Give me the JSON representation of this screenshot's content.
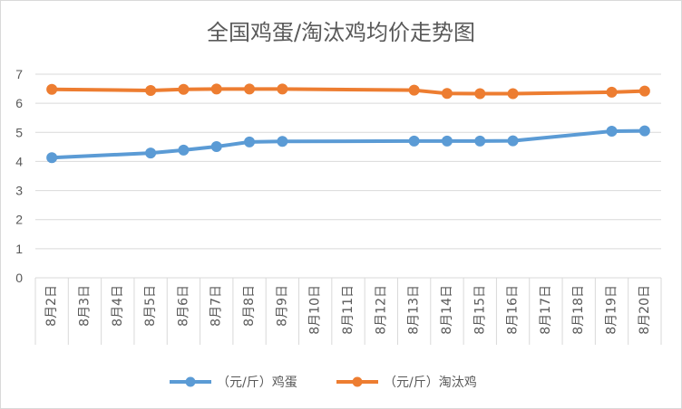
{
  "chart_data": {
    "type": "line",
    "title": "全国鸡蛋/淘汰鸡均价走势图",
    "categories": [
      "8月2日",
      "8月3日",
      "8月4日",
      "8月5日",
      "8月6日",
      "8月7日",
      "8月8日",
      "8月9日",
      "8月10日",
      "8月11日",
      "8月12日",
      "8月13日",
      "8月14日",
      "8月15日",
      "8月16日",
      "8月17日",
      "8月18日",
      "8月19日",
      "8月20日"
    ],
    "series": [
      {
        "name": "（元/斤）鸡蛋",
        "color": "#5B9BD5",
        "values": [
          4.13,
          null,
          null,
          4.29,
          4.39,
          4.51,
          4.67,
          4.69,
          null,
          null,
          null,
          4.7,
          4.7,
          4.7,
          4.71,
          null,
          null,
          5.04,
          5.05
        ]
      },
      {
        "name": "（元/斤）淘汰鸡",
        "color": "#ED7D31",
        "values": [
          6.48,
          null,
          null,
          6.44,
          6.48,
          6.49,
          6.49,
          6.49,
          null,
          null,
          null,
          6.45,
          6.34,
          6.33,
          6.33,
          null,
          null,
          6.38,
          6.42
        ]
      }
    ],
    "yticks": [
      "0",
      "1",
      "2",
      "3",
      "4",
      "5",
      "6",
      "7"
    ],
    "ylim": [
      0,
      7
    ],
    "grid": true,
    "legend": "bottom"
  }
}
